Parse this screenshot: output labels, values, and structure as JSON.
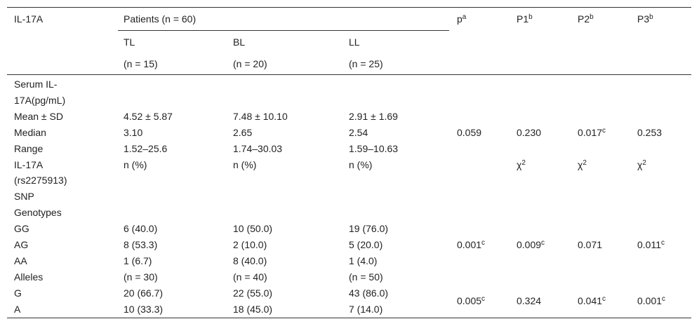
{
  "table": {
    "header": {
      "variable": "IL-17A",
      "patients": "Patients (n = 60)",
      "groups": [
        {
          "name": "TL",
          "n": "(n = 15)"
        },
        {
          "name": "BL",
          "n": "(n = 20)"
        },
        {
          "name": "LL",
          "n": "(n = 25)"
        }
      ],
      "tests": [
        {
          "text": "p",
          "sup": "a"
        },
        {
          "text": "P1",
          "sup": "b"
        },
        {
          "text": "P2",
          "sup": "b"
        },
        {
          "text": "P3",
          "sup": "b"
        }
      ]
    },
    "rows": [
      {
        "label": [
          "Serum IL-",
          "17A(pg/mL)"
        ]
      },
      {
        "label": [
          "Mean ± SD"
        ],
        "cells": [
          "4.52 ± 5.87",
          "7.48 ± 10.10",
          "2.91 ± 1.69"
        ]
      },
      {
        "label": [
          "Median"
        ],
        "cells": [
          "3.10",
          "2.65",
          "2.54"
        ]
      },
      {
        "label": [
          "Range"
        ],
        "cells": [
          "1.52–25.6",
          "1.74–30.03",
          "1.59–10.63"
        ]
      },
      {
        "label": [
          "IL-17A",
          "(rs2275913)",
          "SNP"
        ],
        "cells": [
          "n (%)",
          "n (%)",
          "n (%)"
        ]
      },
      {
        "label": [
          "Genotypes"
        ]
      },
      {
        "label": [
          "GG"
        ],
        "cells": [
          "6 (40.0)",
          "10 (50.0)",
          "19 (76.0)"
        ]
      },
      {
        "label": [
          "AG"
        ],
        "cells": [
          "8 (53.3)",
          "2 (10.0)",
          "5 (20.0)"
        ]
      },
      {
        "label": [
          "AA"
        ],
        "cells": [
          "1 (6.7)",
          "8 (40.0)",
          "1 (4.0)"
        ]
      },
      {
        "label": [
          "Alleles"
        ],
        "cells": [
          "(n = 30)",
          "(n = 40)",
          "(n = 50)"
        ]
      },
      {
        "label": [
          "G"
        ],
        "cells": [
          "20 (66.7)",
          "22 (55.0)",
          "43 (86.0)"
        ]
      },
      {
        "label": [
          "A"
        ],
        "cells": [
          "10 (33.3)",
          "18 (45.0)",
          "7 (14.0)"
        ]
      }
    ],
    "test_groups": [
      {
        "values": [
          {
            "text": "0.059"
          },
          {
            "text": "0.230"
          },
          {
            "text": "0.017",
            "sup": "c"
          },
          {
            "text": "0.253"
          }
        ]
      },
      {
        "values": [
          null,
          {
            "text": "χ",
            "sup": "2"
          },
          {
            "text": "χ",
            "sup": "2"
          },
          {
            "text": "χ",
            "sup": "2"
          }
        ]
      },
      {
        "values": [
          {
            "text": "0.001",
            "sup": "c"
          },
          {
            "text": "0.009",
            "sup": "c"
          },
          {
            "text": "0.071"
          },
          {
            "text": "0.011",
            "sup": "c"
          }
        ]
      },
      {
        "values": [
          {
            "text": "0.005",
            "sup": "c"
          },
          {
            "text": "0.324"
          },
          {
            "text": "0.041",
            "sup": "c"
          },
          {
            "text": "0.001",
            "sup": "c"
          }
        ]
      }
    ]
  }
}
